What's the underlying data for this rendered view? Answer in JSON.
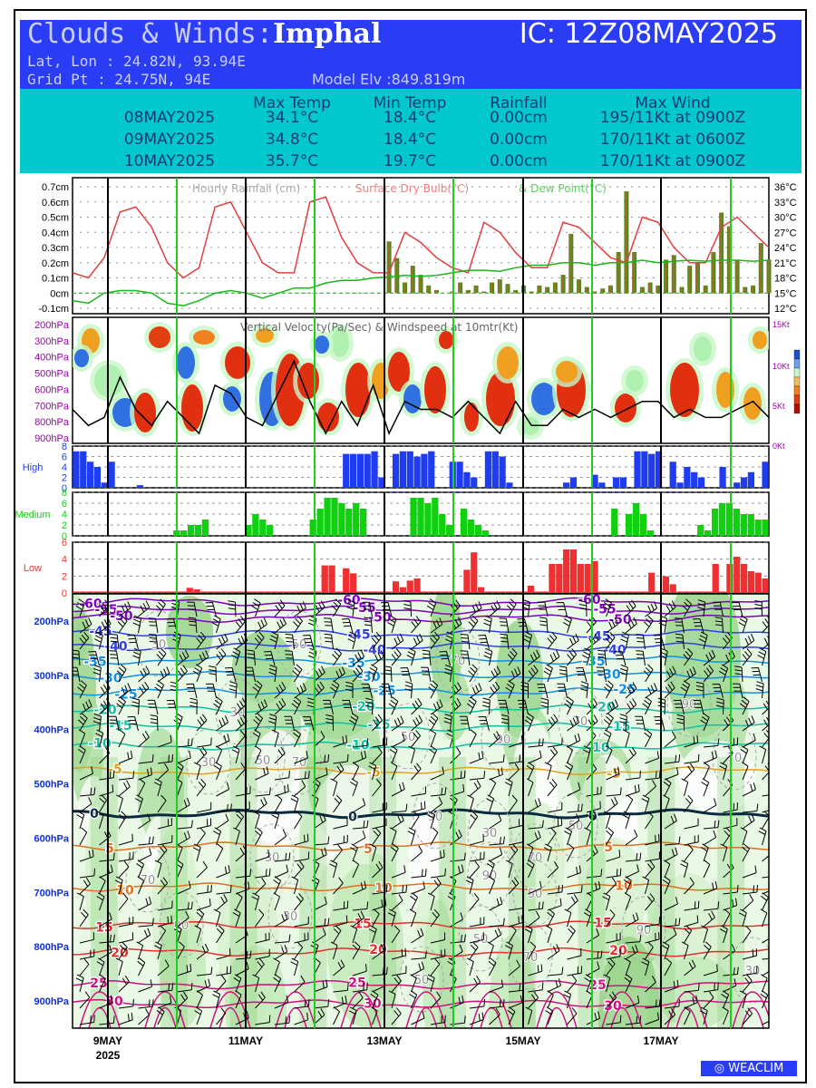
{
  "header": {
    "title_prefix": "Clouds & Winds:",
    "location": "Imphal",
    "ic": "IC: 12Z08MAY2025",
    "latlon": "Lat, Lon : 24.82N, 93.94E",
    "gridpt": "Grid Pt  : 24.75N, 94E",
    "elev": "Model Elv :849.819m"
  },
  "summary": {
    "columns": [
      "Max Temp",
      "Min Temp",
      "Rainfall",
      "Max Wind"
    ],
    "rows": [
      {
        "date": "08MAY2025",
        "max_temp": "34.1°C",
        "min_temp": "18.4°C",
        "rain": "0.00cm",
        "wind": "195/11Kt at 0900Z"
      },
      {
        "date": "09MAY2025",
        "max_temp": "34.8°C",
        "min_temp": "18.4°C",
        "rain": "0.00cm",
        "wind": "170/11Kt at 0600Z"
      },
      {
        "date": "10MAY2025",
        "max_temp": "35.7°C",
        "min_temp": "19.7°C",
        "rain": "0.00cm",
        "wind": "170/11Kt at 0900Z"
      }
    ]
  },
  "footer": {
    "brand": "WEACLIM"
  },
  "colors": {
    "band_blue": "#2b3cf5",
    "band_cyan": "#00c8cc",
    "temp_line": "#e04040",
    "dew_line": "#18b818",
    "rain_bar": "#4a8a20",
    "high_cloud": "#1f3cf0",
    "medium_cloud": "#10d010",
    "low_cloud": "#f03030",
    "day_line": "#000000",
    "midday_line": "#22cc22"
  },
  "chart_data": [
    {
      "type": "line",
      "legend": [
        "Hourly Rainfall (cm)",
        "Surface Dry Bulb(°C)",
        "& Dew Point(°C)"
      ],
      "y_left_ticks": [
        "0.7cm",
        "0.6cm",
        "0.5cm",
        "0.4cm",
        "0.3cm",
        "0.2cm",
        "0.1cm",
        "0cm",
        "-0.1cm"
      ],
      "y_right_ticks": [
        "36°C",
        "33°C",
        "30°C",
        "27°C",
        "24°C",
        "21°C",
        "18°C",
        "15°C",
        "12°C"
      ],
      "ylim_left": [
        -0.1,
        0.7
      ],
      "ylim_right": [
        12,
        36
      ],
      "x_hours": [
        0,
        6,
        12,
        18,
        24,
        30,
        36,
        42,
        48,
        54,
        60,
        66,
        72,
        78,
        84,
        90,
        96,
        102,
        108,
        114,
        120,
        126,
        132,
        138,
        144,
        150,
        156,
        162,
        168,
        174,
        180,
        186,
        192,
        198,
        204,
        210,
        216,
        222,
        228,
        234,
        240,
        246,
        252,
        258,
        264
      ],
      "dry_bulb": [
        19,
        18,
        22,
        31,
        32,
        28,
        21,
        18,
        20,
        32,
        33,
        27,
        21,
        19,
        19,
        33,
        34,
        26,
        21,
        19,
        19,
        27,
        25,
        22,
        20,
        19,
        29,
        27,
        23,
        20,
        20,
        29,
        28,
        25,
        22,
        21,
        30,
        29,
        24,
        21,
        21,
        28,
        30,
        27,
        24
      ],
      "dew_point": [
        13.5,
        13,
        15,
        15.5,
        15.5,
        15,
        13,
        12.5,
        13.5,
        15,
        15.5,
        15,
        14,
        15,
        16,
        16,
        17,
        17.5,
        17.5,
        18,
        18.2,
        18.5,
        18.3,
        18.5,
        19,
        19.5,
        19.5,
        19.3,
        20,
        20.5,
        20.5,
        21,
        21,
        20.5,
        21,
        21,
        21.5,
        21,
        21.3,
        21.5,
        21.3,
        21.5,
        21.5,
        21.3,
        21.5
      ],
      "rain_hours": [
        120,
        123,
        126,
        129,
        132,
        135,
        138,
        141,
        144,
        147,
        150,
        153,
        156,
        159,
        162,
        165,
        168,
        171,
        174,
        177,
        180,
        183,
        186,
        189,
        192,
        195,
        198,
        201,
        204,
        207,
        210,
        213,
        216,
        219,
        222,
        225,
        228,
        231,
        234,
        237,
        240,
        243,
        246,
        249,
        252,
        255,
        258,
        261,
        264
      ],
      "rain": [
        0.34,
        0.23,
        0.07,
        0.18,
        0.12,
        0.05,
        0.02,
        0.0,
        0.01,
        0.07,
        0.02,
        0.05,
        0.01,
        0.07,
        0.09,
        0.06,
        0.02,
        0.05,
        0.01,
        0.05,
        0.04,
        0.07,
        0.12,
        0.39,
        0.09,
        0.04,
        0.01,
        0.03,
        0.05,
        0.27,
        0.67,
        0.27,
        0.04,
        0.07,
        0.05,
        0.22,
        0.25,
        0.04,
        0.18,
        0.2,
        0.05,
        0.27,
        0.53,
        0.44,
        0.22,
        0.04,
        0.05,
        0.33,
        0.22
      ]
    },
    {
      "type": "heatmap",
      "title": "Vertical Velocity(Pa/Sec) & Windspeed at 10mtr(Kt)",
      "y_left_ticks": [
        "200hPa",
        "300hPa",
        "400hPa",
        "500hPa",
        "600hPa",
        "700hPa",
        "800hPa",
        "900hPa"
      ],
      "y_right_ticks": [
        "15Kt",
        "10Kt",
        "5Kt",
        "0Kt"
      ],
      "ylim_right": [
        0,
        15
      ],
      "wind_10m": [
        4,
        2,
        3,
        8,
        4,
        2,
        5,
        3,
        1,
        7,
        6,
        3,
        2,
        6,
        10,
        5,
        1,
        5,
        2,
        7,
        1,
        5,
        4,
        4,
        3,
        5,
        3,
        1,
        5,
        2,
        2,
        4,
        3,
        4,
        3,
        4,
        5,
        5,
        3,
        4,
        3,
        3,
        4,
        5,
        3
      ]
    },
    {
      "type": "bar",
      "name": "High",
      "y_ticks": [
        "8",
        "6",
        "4",
        "2",
        "0"
      ],
      "ylim": [
        0,
        8
      ],
      "values": [
        7,
        7,
        5,
        4,
        1,
        5,
        0,
        0,
        0,
        0.5,
        0,
        0,
        0,
        0,
        0,
        0,
        0,
        0,
        0,
        0,
        0,
        0,
        0,
        0,
        0,
        0,
        0,
        0,
        0,
        0,
        0,
        0,
        0,
        0,
        0,
        0,
        0,
        0,
        6.5,
        6.5,
        6.5,
        6.5,
        7,
        2,
        0,
        6.5,
        7,
        7,
        6,
        6.5,
        7,
        0,
        0,
        5,
        5,
        3,
        2,
        0,
        7,
        7,
        6,
        1,
        0,
        0,
        0,
        0,
        0,
        0,
        0,
        1,
        2,
        0,
        0,
        2.5,
        1,
        0,
        2,
        2,
        0,
        7,
        7,
        6.5,
        7,
        0,
        5,
        1,
        4,
        3,
        2,
        0,
        0,
        4,
        0,
        1,
        2,
        3,
        0,
        5
      ]
    },
    {
      "type": "bar",
      "name": "Medium",
      "y_ticks": [
        "8",
        "6",
        "4",
        "2",
        "0"
      ],
      "ylim": [
        0,
        8
      ],
      "values": [
        0,
        0,
        0,
        0,
        0,
        0,
        0,
        0,
        0,
        0,
        0,
        0,
        0,
        0,
        1,
        1,
        2,
        2,
        3,
        0,
        0,
        0,
        0,
        0,
        2,
        4,
        3,
        2,
        0,
        0,
        0,
        0,
        0,
        3,
        5,
        7,
        7,
        6,
        5,
        6,
        5,
        0,
        0,
        0,
        0,
        0,
        0,
        7,
        7,
        6,
        7,
        4,
        2,
        0,
        5,
        3,
        2,
        1,
        0,
        0,
        0,
        0,
        0,
        0,
        0,
        0,
        0,
        0,
        0,
        0,
        0,
        0,
        0,
        0,
        0,
        5,
        0,
        4,
        6,
        4,
        1,
        0,
        0,
        0,
        0,
        0,
        0,
        2,
        1,
        5,
        6,
        6,
        5,
        4,
        4,
        3,
        3
      ]
    },
    {
      "type": "bar",
      "name": "Low",
      "y_ticks": [
        "6",
        "4",
        "2",
        "0"
      ],
      "ylim": [
        0,
        7
      ],
      "values": [
        0.2,
        0.2,
        0.2,
        0.2,
        0.2,
        0.2,
        0.2,
        0.2,
        0.2,
        0.2,
        0.2,
        0.2,
        0.2,
        0.2,
        0.2,
        0.2,
        0.7,
        0.5,
        0.2,
        0.2,
        0.2,
        0.2,
        0.2,
        0.2,
        0.2,
        0.2,
        0.2,
        0.2,
        0.2,
        0.2,
        0.2,
        0.2,
        0.2,
        0.2,
        0.2,
        3.8,
        3.8,
        0.2,
        3.4,
        2.7,
        0.2,
        0.2,
        0.2,
        0.2,
        0.2,
        1.6,
        0.8,
        1.7,
        2.0,
        0.2,
        0.2,
        0.2,
        0.2,
        0.2,
        0.2,
        3.2,
        5.6,
        0.8,
        0.2,
        0.2,
        0.2,
        0.2,
        0.2,
        0.2,
        1.0,
        0.2,
        0.2,
        4.0,
        4.0,
        6.0,
        6.0,
        4.0,
        4.0,
        4.4,
        0.2,
        0.2,
        0.2,
        0.2,
        0.2,
        0.2,
        0.2,
        2.8,
        0.2,
        2.3,
        1.2,
        0.2,
        0.2,
        0.2,
        0.2,
        0.2,
        4.0,
        0.2,
        4.0,
        5.0,
        4.0,
        3.0,
        2.8,
        2.0
      ]
    },
    {
      "type": "line",
      "title": "",
      "y_ticks": [
        "200hPa",
        "300hPa",
        "400hPa",
        "500hPa",
        "600hPa",
        "700hPa",
        "800hPa",
        "900hPa"
      ],
      "x_ticks": [
        "9MAY",
        "11MAY",
        "13MAY",
        "15MAY",
        "17MAY"
      ],
      "x_year": "2025",
      "temperature_levels": [
        {
          "label": "-60",
          "pressure": 165
        },
        {
          "label": "-55",
          "pressure": 180
        },
        {
          "label": "-50",
          "pressure": 195
        },
        {
          "label": "-45",
          "pressure": 223
        },
        {
          "label": "-40",
          "pressure": 248
        },
        {
          "label": "-35",
          "pressure": 272
        },
        {
          "label": "-30",
          "pressure": 300
        },
        {
          "label": "-25",
          "pressure": 330
        },
        {
          "label": "-20",
          "pressure": 362
        },
        {
          "label": "-15",
          "pressure": 395
        },
        {
          "label": "-10",
          "pressure": 430
        },
        {
          "label": "-5",
          "pressure": 476
        },
        {
          "label": "0",
          "pressure": 555
        },
        {
          "label": "5",
          "pressure": 615
        },
        {
          "label": "10",
          "pressure": 690
        },
        {
          "label": "15",
          "pressure": 760
        },
        {
          "label": "20",
          "pressure": 810
        },
        {
          "label": "25",
          "pressure": 870
        },
        {
          "label": "30",
          "pressure": 905
        }
      ],
      "humidity_labels": [
        "30",
        "50",
        "70",
        "90"
      ]
    }
  ]
}
